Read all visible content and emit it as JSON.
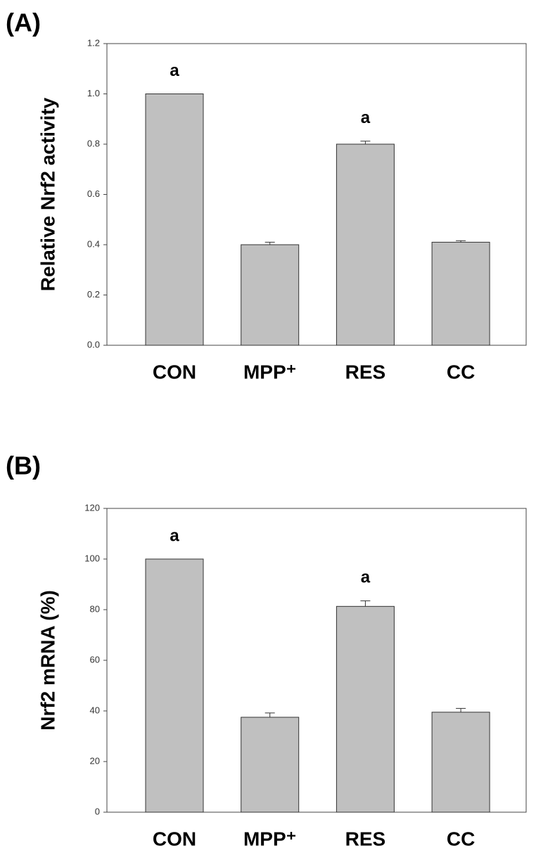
{
  "chart_data": [
    {
      "type": "bar",
      "label": "(A)",
      "ylabel": "Relative Nrf2 activity",
      "categories": [
        "CON",
        "MPP⁺",
        "RES",
        "CC"
      ],
      "values": [
        1.0,
        0.4,
        0.8,
        0.41
      ],
      "errors": [
        0,
        0.01,
        0.012,
        0.006
      ],
      "annotations": [
        "a",
        null,
        "a",
        null
      ],
      "color": "#c0c0c0",
      "ylim": [
        0,
        1.2
      ],
      "yticks": [
        {
          "value": 0,
          "label": "0.0"
        },
        0.2,
        0.4,
        0.6,
        0.8,
        {
          "value": 1,
          "label": "1.0"
        },
        1.2
      ]
    },
    {
      "type": "bar",
      "label": "(B)",
      "ylabel": "Nrf2 mRNA (%)",
      "categories": [
        "CON",
        "MPP⁺",
        "RES",
        "CC"
      ],
      "values": [
        100,
        37.5,
        81.3,
        39.5
      ],
      "errors": [
        0,
        1.7,
        2.2,
        1.5
      ],
      "annotations": [
        "a",
        null,
        "a",
        null
      ],
      "color": "#c0c0c0",
      "ylim": [
        0,
        120
      ],
      "yticks": [
        0,
        20,
        40,
        60,
        80,
        100,
        120
      ]
    }
  ]
}
